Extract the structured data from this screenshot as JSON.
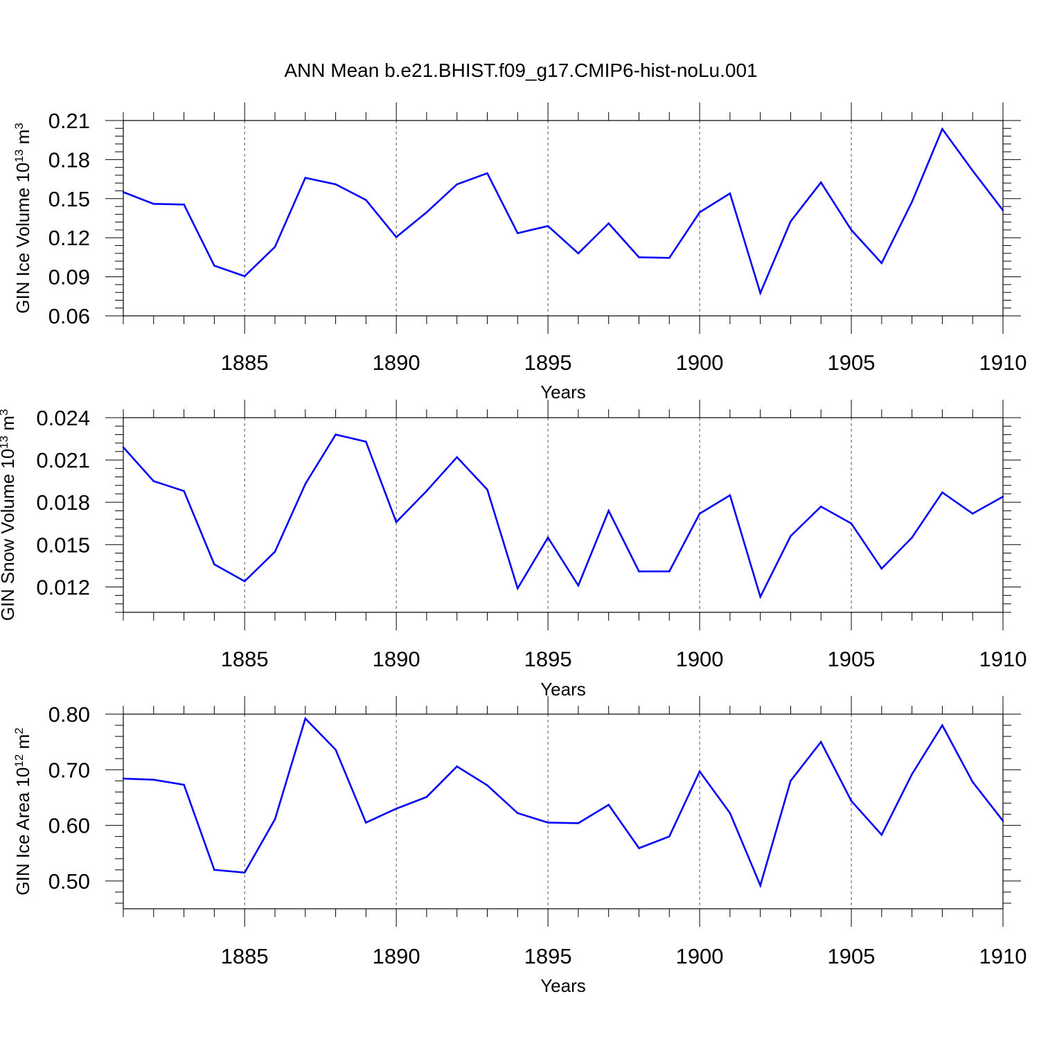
{
  "title": "ANN Mean b.e21.BHIST.f09_g17.CMIP6-hist-noLu.001",
  "line_color": "#0000ff",
  "chart_data": [
    {
      "type": "line",
      "ylabel_main": "GIN Ice Volume 10",
      "ylabel_sup": "13",
      "ylabel_unit": " m",
      "ylabel_unit_sup": "3",
      "xlabel": "Years",
      "xlim": [
        1881,
        1910
      ],
      "ylim": [
        0.06,
        0.21
      ],
      "yticks": [
        0.06,
        0.09,
        0.12,
        0.15,
        0.18,
        0.21
      ],
      "ytick_labels": [
        "0.06",
        "0.09",
        "0.12",
        "0.15",
        "0.18",
        "0.21"
      ],
      "xticks": [
        1885,
        1890,
        1895,
        1900,
        1905,
        1910
      ],
      "xtick_labels": [
        "1885",
        "1890",
        "1895",
        "1900",
        "1905",
        "1910"
      ],
      "grid": "vertical dashed at major ticks",
      "x": [
        1881,
        1882,
        1883,
        1884,
        1885,
        1886,
        1887,
        1888,
        1889,
        1890,
        1891,
        1892,
        1893,
        1894,
        1895,
        1896,
        1897,
        1898,
        1899,
        1900,
        1901,
        1902,
        1903,
        1904,
        1905,
        1906,
        1907,
        1908,
        1909,
        1910
      ],
      "values": [
        0.155,
        0.146,
        0.1455,
        0.0985,
        0.0905,
        0.113,
        0.166,
        0.161,
        0.149,
        0.1205,
        0.1395,
        0.161,
        0.1695,
        0.1235,
        0.129,
        0.108,
        0.131,
        0.105,
        0.1045,
        0.1395,
        0.154,
        0.0775,
        0.1325,
        0.1625,
        0.126,
        0.1005,
        0.1475,
        0.2035,
        0.1715,
        0.141
      ]
    },
    {
      "type": "line",
      "ylabel_main": "GIN Snow Volume 10",
      "ylabel_sup": "13",
      "ylabel_unit": " m",
      "ylabel_unit_sup": "3",
      "xlabel": "Years",
      "xlim": [
        1881,
        1910
      ],
      "ylim": [
        0.0102,
        0.024
      ],
      "yticks": [
        0.012,
        0.015,
        0.018,
        0.021,
        0.024
      ],
      "ytick_labels": [
        "0.012",
        "0.015",
        "0.018",
        "0.021",
        "0.024"
      ],
      "xticks": [
        1885,
        1890,
        1895,
        1900,
        1905,
        1910
      ],
      "xtick_labels": [
        "1885",
        "1890",
        "1895",
        "1900",
        "1905",
        "1910"
      ],
      "grid": "vertical dashed at major ticks",
      "x": [
        1881,
        1882,
        1883,
        1884,
        1885,
        1886,
        1887,
        1888,
        1889,
        1890,
        1891,
        1892,
        1893,
        1894,
        1895,
        1896,
        1897,
        1898,
        1899,
        1900,
        1901,
        1902,
        1903,
        1904,
        1905,
        1906,
        1907,
        1908,
        1909,
        1910
      ],
      "values": [
        0.0219,
        0.0195,
        0.0188,
        0.0136,
        0.0124,
        0.0145,
        0.0193,
        0.0228,
        0.0223,
        0.0166,
        0.0188,
        0.0212,
        0.0189,
        0.0119,
        0.0155,
        0.0121,
        0.0174,
        0.0131,
        0.0131,
        0.0172,
        0.0185,
        0.0113,
        0.0156,
        0.0177,
        0.0165,
        0.0133,
        0.0155,
        0.0187,
        0.0172,
        0.0184
      ]
    },
    {
      "type": "line",
      "ylabel_main": "GIN Ice Area 10",
      "ylabel_sup": "12",
      "ylabel_unit": " m",
      "ylabel_unit_sup": "2",
      "xlabel": "Years",
      "xlim": [
        1881,
        1910
      ],
      "ylim": [
        0.45,
        0.8
      ],
      "yticks": [
        0.5,
        0.6,
        0.7,
        0.8
      ],
      "ytick_labels": [
        "0.50",
        "0.60",
        "0.70",
        "0.80"
      ],
      "xticks": [
        1885,
        1890,
        1895,
        1900,
        1905,
        1910
      ],
      "xtick_labels": [
        "1885",
        "1890",
        "1895",
        "1900",
        "1905",
        "1910"
      ],
      "grid": "vertical dashed at major ticks",
      "x": [
        1881,
        1882,
        1883,
        1884,
        1885,
        1886,
        1887,
        1888,
        1889,
        1890,
        1891,
        1892,
        1893,
        1894,
        1895,
        1896,
        1897,
        1898,
        1899,
        1900,
        1901,
        1902,
        1903,
        1904,
        1905,
        1906,
        1907,
        1908,
        1909,
        1910
      ],
      "values": [
        0.684,
        0.682,
        0.673,
        0.52,
        0.515,
        0.611,
        0.792,
        0.736,
        0.605,
        0.63,
        0.651,
        0.706,
        0.672,
        0.622,
        0.605,
        0.604,
        0.637,
        0.559,
        0.58,
        0.697,
        0.622,
        0.492,
        0.68,
        0.75,
        0.644,
        0.583,
        0.692,
        0.78,
        0.678,
        0.608
      ]
    }
  ]
}
